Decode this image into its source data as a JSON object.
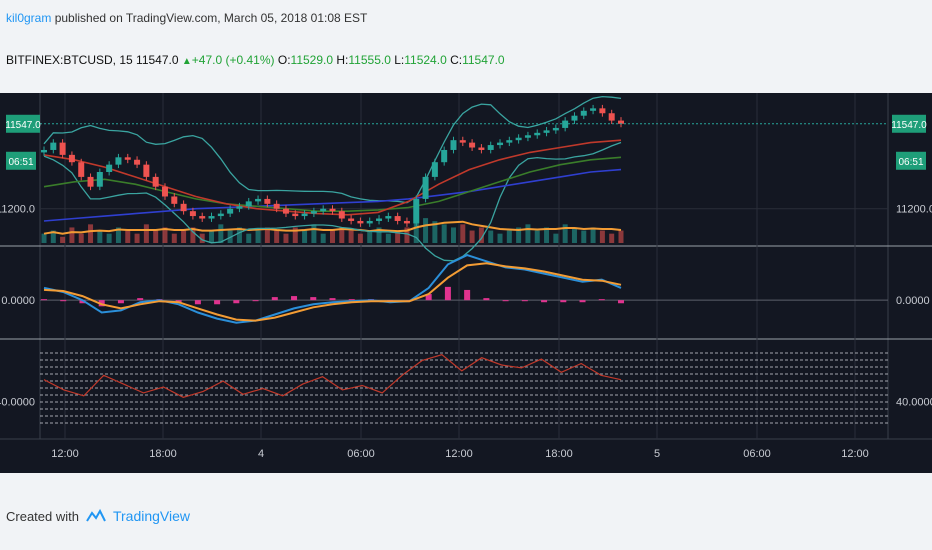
{
  "header": {
    "author": "kil0gram",
    "published_text": "published on TradingView.com, March 05, 2018 01:08 EST"
  },
  "ticker": {
    "symbol": "BITFINEX:BTCUSD, 15",
    "last": "11547.0",
    "change": "+47.0 (+0.41%)",
    "open_label": "O:",
    "open": "11529.0",
    "high_label": "H:",
    "high": "11555.0",
    "low_label": "L:",
    "low": "11524.0",
    "close_label": "C:",
    "close": "11547.0"
  },
  "footer": {
    "created_with": "Created with",
    "brand": "TradingView"
  },
  "colors": {
    "background": "#131722",
    "grid": "#2a2e39",
    "candle_up": "#26a69a",
    "candle_down": "#ef5350",
    "bollinger": "#3aa4a0",
    "ma_blue": "#2f3fd0",
    "ma_green": "#3a7d2a",
    "ma_red": "#c0392b",
    "macd_line": "#2b8fd9",
    "signal_line": "#f39c34",
    "histogram": "#e0338f",
    "rsi_line": "#c0392b",
    "price_badge": "#1e9e79"
  },
  "chart_data": [
    {
      "type": "candlestick",
      "panel": "price",
      "current_price_label": "11547.0",
      "countdown_label": "06:51",
      "y_tick_labels": [
        "11200.0"
      ],
      "y_ticks": [
        11200
      ],
      "ylim": [
        11060,
        11640
      ],
      "x_tick_labels": [
        "12:00",
        "18:00",
        "4",
        "06:00",
        "12:00",
        "18:00",
        "5",
        "06:00",
        "12:00"
      ],
      "close_series": [
        11440,
        11470,
        11420,
        11390,
        11330,
        11290,
        11350,
        11380,
        11410,
        11400,
        11380,
        11330,
        11290,
        11250,
        11220,
        11190,
        11170,
        11160,
        11170,
        11180,
        11200,
        11210,
        11230,
        11240,
        11220,
        11200,
        11180,
        11170,
        11180,
        11190,
        11200,
        11190,
        11160,
        11150,
        11140,
        11150,
        11160,
        11170,
        11150,
        11140,
        11240,
        11330,
        11390,
        11440,
        11480,
        11470,
        11450,
        11440,
        11460,
        11470,
        11480,
        11490,
        11500,
        11510,
        11520,
        11530,
        11560,
        11580,
        11600,
        11610,
        11590,
        11560,
        11547
      ],
      "moving_averages": [
        {
          "color": "ma_blue",
          "values": [
            11150,
            11160,
            11170,
            11180,
            11190,
            11200,
            11205,
            11210,
            11215,
            11220,
            11225,
            11230,
            11240,
            11255,
            11270,
            11290,
            11310,
            11330,
            11350,
            11360
          ]
        },
        {
          "color": "ma_green",
          "values": [
            11290,
            11310,
            11320,
            11300,
            11270,
            11240,
            11220,
            11210,
            11200,
            11190,
            11190,
            11195,
            11205,
            11230,
            11270,
            11310,
            11350,
            11380,
            11400,
            11410
          ]
        },
        {
          "color": "ma_red",
          "values": [
            11420,
            11400,
            11370,
            11330,
            11290,
            11250,
            11220,
            11200,
            11190,
            11180,
            11175,
            11185,
            11230,
            11300,
            11360,
            11400,
            11430,
            11450,
            11470,
            11480
          ]
        }
      ],
      "volume_series": [
        3,
        4,
        2,
        5,
        3,
        6,
        4,
        3,
        5,
        4,
        3,
        6,
        4,
        5,
        3,
        4,
        5,
        3,
        4,
        6,
        4,
        5,
        3,
        4,
        5,
        4,
        3,
        5,
        4,
        6,
        3,
        4,
        5,
        4,
        3,
        4,
        5,
        3,
        4,
        5,
        9,
        8,
        7,
        6,
        5,
        6,
        4,
        5,
        4,
        3,
        4,
        5,
        6,
        4,
        5,
        3,
        6,
        5,
        4,
        5,
        4,
        3,
        4
      ]
    },
    {
      "type": "line",
      "panel": "macd",
      "y_tick_labels": [
        "0.0000"
      ],
      "y_ticks": [
        0
      ],
      "ylim": [
        -35,
        50
      ],
      "series": [
        {
          "color": "macd_line",
          "values": [
            12,
            8,
            0,
            -12,
            -10,
            -2,
            0,
            -4,
            -12,
            -18,
            -22,
            -20,
            -14,
            -8,
            -4,
            -2,
            -1,
            0,
            -2,
            -1,
            12,
            35,
            44,
            38,
            32,
            30,
            26,
            22,
            18,
            20,
            12
          ]
        },
        {
          "color": "signal_line",
          "values": [
            10,
            9,
            4,
            -4,
            -8,
            -4,
            -1,
            -2,
            -8,
            -14,
            -19,
            -20,
            -17,
            -12,
            -7,
            -4,
            -2,
            -1,
            -1,
            -1,
            6,
            22,
            34,
            36,
            33,
            31,
            28,
            24,
            20,
            19,
            15
          ]
        }
      ],
      "histogram": [
        1,
        -1,
        -3,
        -6,
        -3,
        2,
        1,
        -2,
        -4,
        -4,
        -3,
        0,
        3,
        4,
        3,
        2,
        1,
        1,
        -1,
        0,
        6,
        13,
        10,
        2,
        -1,
        -1,
        -2,
        -2,
        -2,
        1,
        -3
      ]
    },
    {
      "type": "line",
      "panel": "rsi",
      "y_tick_labels": [
        "40.0000"
      ],
      "y_ticks": [
        40
      ],
      "ylim": [
        20,
        80
      ],
      "series": [
        {
          "color": "rsi_line",
          "values": [
            55,
            48,
            44,
            58,
            52,
            46,
            50,
            43,
            47,
            54,
            45,
            49,
            44,
            52,
            57,
            48,
            51,
            46,
            58,
            68,
            72,
            61,
            70,
            65,
            63,
            69,
            60,
            66,
            58,
            55
          ]
        }
      ]
    }
  ]
}
